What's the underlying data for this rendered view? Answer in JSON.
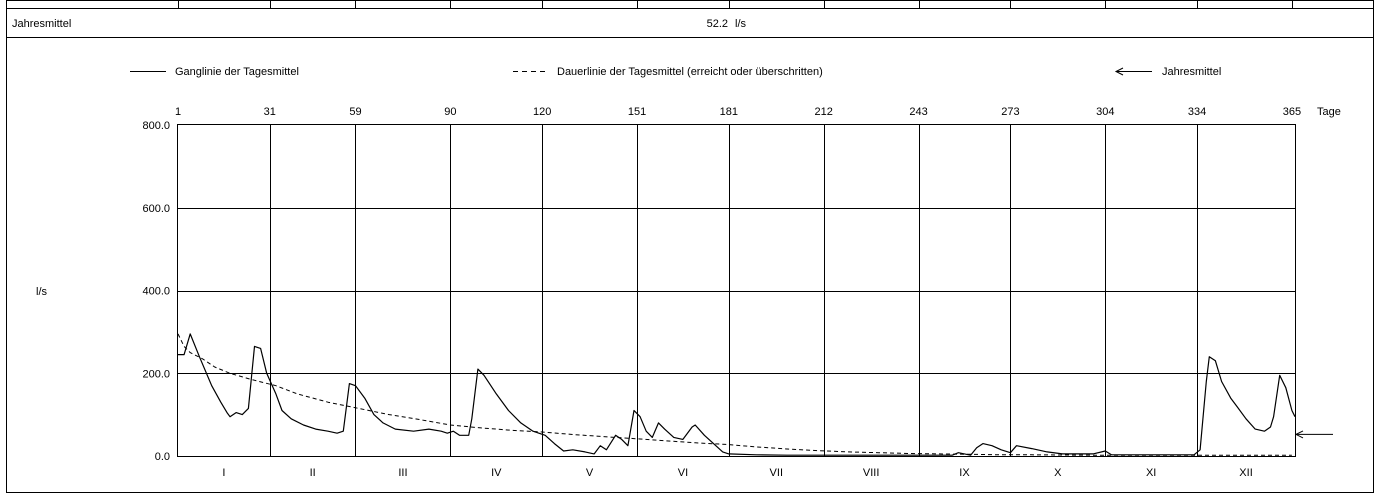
{
  "summary": {
    "label": "Jahresmittel",
    "value": "52.2",
    "unit": "l/s"
  },
  "legend": {
    "ganglinie": "Ganglinie der Tagesmittel",
    "dauerlinie": "Dauerlinie der Tagesmittel (erreicht oder überschritten)",
    "jahresmittel": "Jahresmittel"
  },
  "chart_data": {
    "type": "line",
    "title": "",
    "ylabel": "l/s",
    "xlabel_unit": "Tage",
    "xlim": [
      1,
      365
    ],
    "ylim": [
      0,
      800
    ],
    "y_ticks": [
      "0.0",
      "200.0",
      "400.0",
      "600.0",
      "800.0"
    ],
    "x_ticks": [
      1,
      31,
      59,
      90,
      120,
      151,
      181,
      212,
      243,
      273,
      304,
      334,
      365
    ],
    "months": [
      "I",
      "II",
      "III",
      "IV",
      "V",
      "VI",
      "VII",
      "VIII",
      "IX",
      "X",
      "XI",
      "XII"
    ],
    "grid": true,
    "legend_position": "top",
    "annual_mean": 52.2,
    "series": [
      {
        "name": "Ganglinie der Tagesmittel",
        "style": "solid",
        "points": [
          [
            1,
            245
          ],
          [
            3,
            245
          ],
          [
            5,
            295
          ],
          [
            8,
            240
          ],
          [
            12,
            170
          ],
          [
            15,
            130
          ],
          [
            17,
            105
          ],
          [
            18,
            95
          ],
          [
            20,
            105
          ],
          [
            22,
            100
          ],
          [
            24,
            115
          ],
          [
            26,
            265
          ],
          [
            28,
            260
          ],
          [
            30,
            200
          ],
          [
            33,
            150
          ],
          [
            35,
            110
          ],
          [
            38,
            90
          ],
          [
            42,
            75
          ],
          [
            46,
            65
          ],
          [
            50,
            60
          ],
          [
            53,
            55
          ],
          [
            55,
            60
          ],
          [
            57,
            175
          ],
          [
            59,
            170
          ],
          [
            62,
            140
          ],
          [
            65,
            100
          ],
          [
            68,
            80
          ],
          [
            72,
            65
          ],
          [
            78,
            60
          ],
          [
            83,
            65
          ],
          [
            87,
            60
          ],
          [
            89,
            55
          ],
          [
            91,
            60
          ],
          [
            93,
            50
          ],
          [
            96,
            50
          ],
          [
            97,
            90
          ],
          [
            99,
            210
          ],
          [
            101,
            195
          ],
          [
            105,
            150
          ],
          [
            109,
            110
          ],
          [
            113,
            80
          ],
          [
            117,
            60
          ],
          [
            121,
            50
          ],
          [
            124,
            30
          ],
          [
            127,
            12
          ],
          [
            130,
            15
          ],
          [
            134,
            10
          ],
          [
            137,
            5
          ],
          [
            139,
            25
          ],
          [
            141,
            15
          ],
          [
            144,
            50
          ],
          [
            146,
            40
          ],
          [
            148,
            25
          ],
          [
            150,
            110
          ],
          [
            152,
            95
          ],
          [
            154,
            60
          ],
          [
            156,
            45
          ],
          [
            158,
            80
          ],
          [
            160,
            65
          ],
          [
            163,
            45
          ],
          [
            166,
            40
          ],
          [
            169,
            70
          ],
          [
            170,
            75
          ],
          [
            173,
            50
          ],
          [
            176,
            30
          ],
          [
            179,
            10
          ],
          [
            181,
            5
          ],
          [
            190,
            3
          ],
          [
            200,
            2
          ],
          [
            220,
            2
          ],
          [
            240,
            2
          ],
          [
            254,
            2
          ],
          [
            256,
            8
          ],
          [
            260,
            2
          ],
          [
            262,
            20
          ],
          [
            264,
            30
          ],
          [
            267,
            25
          ],
          [
            270,
            15
          ],
          [
            273,
            8
          ],
          [
            275,
            25
          ],
          [
            280,
            18
          ],
          [
            285,
            10
          ],
          [
            290,
            5
          ],
          [
            300,
            5
          ],
          [
            304,
            12
          ],
          [
            306,
            3
          ],
          [
            320,
            3
          ],
          [
            333,
            3
          ],
          [
            335,
            15
          ],
          [
            337,
            180
          ],
          [
            338,
            240
          ],
          [
            340,
            230
          ],
          [
            342,
            180
          ],
          [
            345,
            140
          ],
          [
            347,
            120
          ],
          [
            350,
            90
          ],
          [
            353,
            65
          ],
          [
            356,
            60
          ],
          [
            358,
            70
          ],
          [
            359,
            95
          ],
          [
            361,
            195
          ],
          [
            363,
            165
          ],
          [
            365,
            110
          ],
          [
            366,
            95
          ]
        ]
      },
      {
        "name": "Dauerlinie der Tagesmittel (erreicht oder überschritten)",
        "style": "dashed",
        "points": [
          [
            1,
            295
          ],
          [
            3,
            265
          ],
          [
            5,
            250
          ],
          [
            9,
            235
          ],
          [
            13,
            215
          ],
          [
            18,
            200
          ],
          [
            25,
            185
          ],
          [
            33,
            170
          ],
          [
            40,
            150
          ],
          [
            50,
            130
          ],
          [
            60,
            115
          ],
          [
            70,
            100
          ],
          [
            80,
            88
          ],
          [
            90,
            75
          ],
          [
            100,
            68
          ],
          [
            110,
            62
          ],
          [
            120,
            58
          ],
          [
            130,
            52
          ],
          [
            140,
            47
          ],
          [
            150,
            42
          ],
          [
            160,
            37
          ],
          [
            170,
            32
          ],
          [
            180,
            28
          ],
          [
            190,
            22
          ],
          [
            200,
            17
          ],
          [
            210,
            13
          ],
          [
            220,
            10
          ],
          [
            230,
            8
          ],
          [
            240,
            6
          ],
          [
            250,
            5
          ],
          [
            260,
            4
          ],
          [
            270,
            3
          ],
          [
            280,
            3
          ],
          [
            300,
            2
          ],
          [
            320,
            2
          ],
          [
            340,
            2
          ],
          [
            365,
            2
          ]
        ]
      }
    ]
  }
}
